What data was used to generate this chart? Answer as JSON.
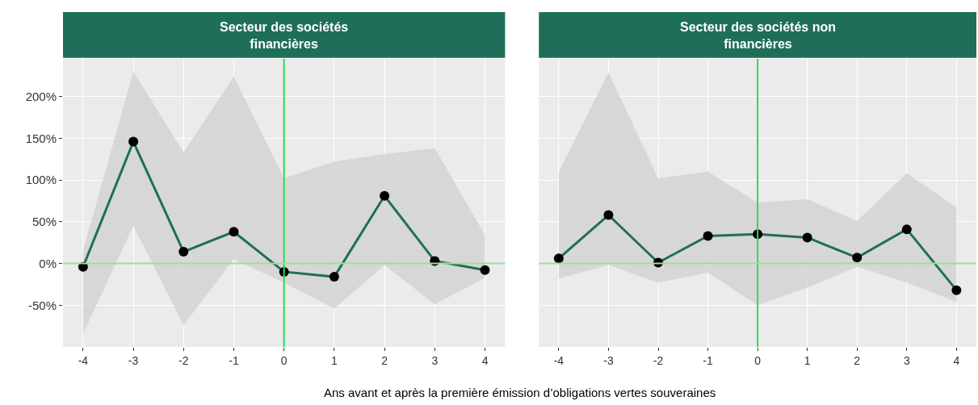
{
  "chart_data": [
    {
      "type": "line",
      "title": "Secteur des sociétés\nfinancières",
      "xlabel": "Ans avant et après la première émission d’obligations vertes souveraines",
      "x": [
        -4,
        -3,
        -2,
        -1,
        0,
        1,
        2,
        3,
        4
      ],
      "series": [
        {
          "color": "#1f6e5a",
          "values": [
            -4,
            146,
            14,
            38,
            -10,
            -16,
            81,
            3,
            -8
          ],
          "lower": [
            -84,
            45,
            -74,
            5,
            -23,
            -54,
            -2,
            -49,
            -17
          ],
          "upper": [
            15,
            230,
            133,
            224,
            102,
            122,
            131,
            138,
            34
          ]
        }
      ],
      "xlim": [
        -4.4,
        4.4
      ],
      "xticks": [
        -4,
        -3,
        -2,
        -1,
        0,
        1,
        2,
        3,
        4
      ],
      "ylim": [
        -100,
        245
      ],
      "yticks": [
        {
          "value": -50,
          "label": "-50%"
        },
        {
          "value": 0,
          "label": "0%"
        },
        {
          "value": 50,
          "label": "50%"
        },
        {
          "value": 100,
          "label": "100%"
        },
        {
          "value": 150,
          "label": "150%"
        },
        {
          "value": 200,
          "label": "200%"
        }
      ],
      "ref_lines": [
        {
          "axis": "x",
          "value": 0,
          "color": "#2ed85a"
        },
        {
          "axis": "y",
          "value": 0,
          "color": "#a3dba0"
        }
      ],
      "grid": true,
      "marker": "circle",
      "line_style": "solid"
    },
    {
      "type": "line",
      "title": "Secteur des sociétés non\nfinancières",
      "x": [
        -4,
        -3,
        -2,
        -1,
        0,
        1,
        2,
        3,
        4
      ],
      "series": [
        {
          "color": "#1f6e5a",
          "values": [
            6,
            58,
            1,
            33,
            35,
            31,
            7,
            41,
            -32
          ],
          "lower": [
            -18,
            -2,
            -23,
            -11,
            -50,
            -29,
            -4,
            -23,
            -46
          ],
          "upper": [
            110,
            229,
            102,
            110,
            73,
            77,
            51,
            108,
            67
          ]
        }
      ],
      "xlim": [
        -4.4,
        4.4
      ],
      "xticks": [
        -4,
        -3,
        -2,
        -1,
        0,
        1,
        2,
        3,
        4
      ],
      "ylim": [
        -100,
        245
      ],
      "yticks": [
        -50,
        0,
        50,
        100,
        150,
        200
      ],
      "ref_lines": [
        {
          "axis": "x",
          "value": 0,
          "color": "#2ed85a"
        },
        {
          "axis": "y",
          "value": 0,
          "color": "#a3dba0"
        }
      ],
      "grid": true,
      "marker": "circle",
      "line_style": "solid",
      "tick_labels": "x"
    }
  ]
}
